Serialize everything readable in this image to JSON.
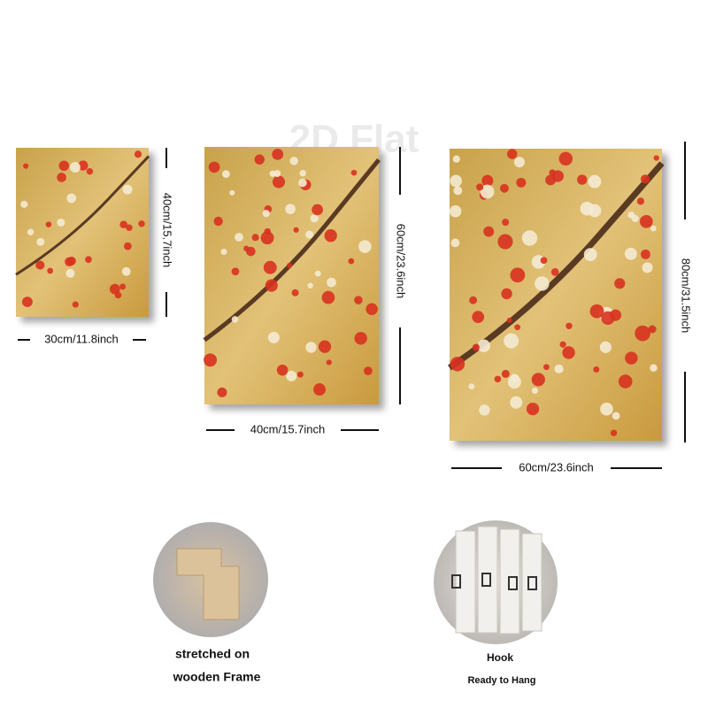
{
  "watermark": "2D Flat",
  "sizes": [
    {
      "width": "30cm/11.8inch",
      "height": "40cm/15.7inch"
    },
    {
      "width": "40cm/15.7inch",
      "height": "60cm/23.6inch"
    },
    {
      "width": "60cm/23.6inch",
      "height": "80cm/31.5inch"
    }
  ],
  "features": [
    {
      "lines": [
        "stretched on",
        "wooden Frame"
      ]
    },
    {
      "lines": [
        "Hook",
        "Ready to Hang"
      ]
    }
  ]
}
